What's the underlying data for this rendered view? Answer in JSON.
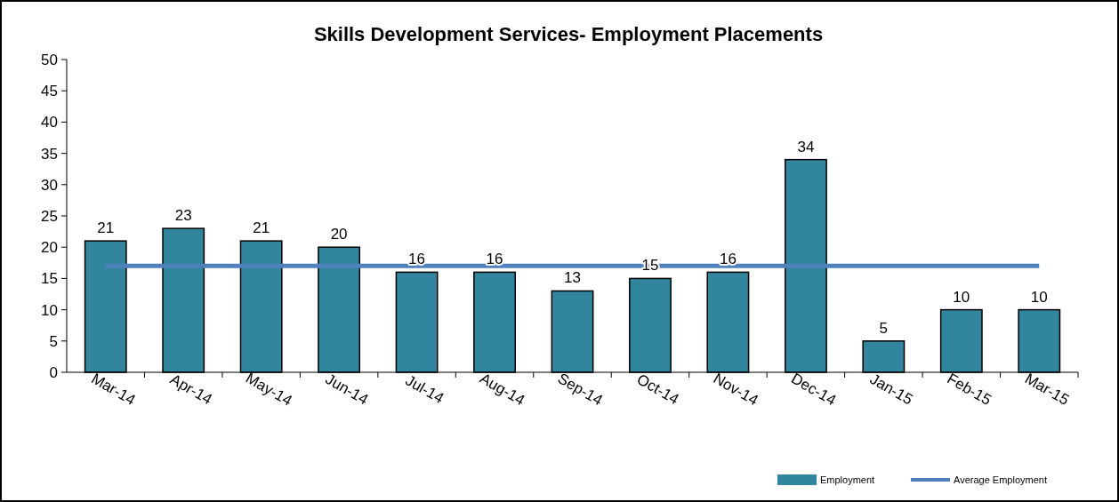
{
  "chart_data": {
    "type": "bar",
    "title": "Skills Development Services- Employment Placements",
    "categories": [
      "Mar-14",
      "Apr-14",
      "May-14",
      "Jun-14",
      "Jul-14",
      "Aug-14",
      "Sep-14",
      "Oct-14",
      "Nov-14",
      "Dec-14",
      "Jan-15",
      "Feb-15",
      "Mar-15"
    ],
    "series": [
      {
        "name": "Employment",
        "color": "#31859c",
        "values": [
          21,
          23,
          21,
          20,
          16,
          16,
          13,
          15,
          16,
          34,
          5,
          10,
          10
        ],
        "value_labels": [
          "21",
          "23",
          "21",
          "20",
          "16",
          "16",
          "13",
          "15",
          "16",
          "34",
          "5",
          "10",
          "10"
        ]
      },
      {
        "name": "Average Employment",
        "type": "line",
        "color": "#4f81bd",
        "values": [
          17,
          17,
          17,
          17,
          17,
          17,
          17,
          17,
          17,
          17,
          17,
          17,
          17
        ]
      }
    ],
    "ylim": [
      0,
      50
    ],
    "yticks": [
      0,
      5,
      10,
      15,
      20,
      25,
      30,
      35,
      40,
      45,
      50
    ],
    "grid": false,
    "legend": "bottom right",
    "marker": "none"
  }
}
